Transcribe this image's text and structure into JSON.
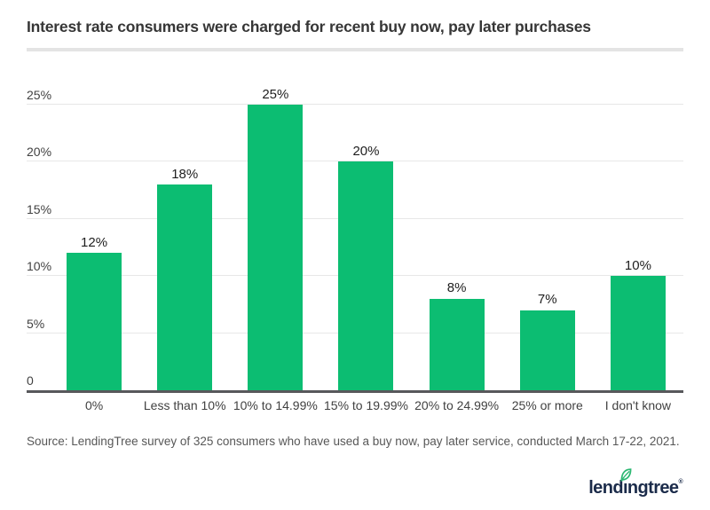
{
  "page": {
    "title": "Interest rate consumers were charged for recent buy now, pay later purchases",
    "source": "Source: LendingTree survey of 325 consumers who have used a buy now, pay later service, conducted March 17-22, 2021."
  },
  "chart_data": {
    "type": "bar",
    "title": "Interest rate consumers were charged for recent buy now, pay later purchases",
    "categories": [
      "0%",
      "Less than 10%",
      "10% to 14.99%",
      "15% to 19.99%",
      "20% to 24.99%",
      "25% or more",
      "I don't know"
    ],
    "values": [
      12,
      18,
      25,
      20,
      8,
      7,
      10
    ],
    "value_labels": [
      "12%",
      "18%",
      "25%",
      "20%",
      "8%",
      "7%",
      "10%"
    ],
    "y_axis": [
      {
        "label": "25%",
        "value": 25
      },
      {
        "label": "20%",
        "value": 20
      },
      {
        "label": "15%",
        "value": 15
      },
      {
        "label": "10%",
        "value": 10
      },
      {
        "label": "5%",
        "value": 5
      },
      {
        "label": "0",
        "value": 0
      }
    ],
    "ylim": [
      0,
      25
    ],
    "grid": true,
    "legend": false,
    "xlabel": "",
    "ylabel": "",
    "bar_color": "#0cbd72"
  },
  "logo": {
    "part1": "lend",
    "dotless_i": "ı",
    "part2": "ngtree",
    "registered": "®",
    "navy": "#1b2b4a",
    "leaf_green": "#2db873"
  }
}
